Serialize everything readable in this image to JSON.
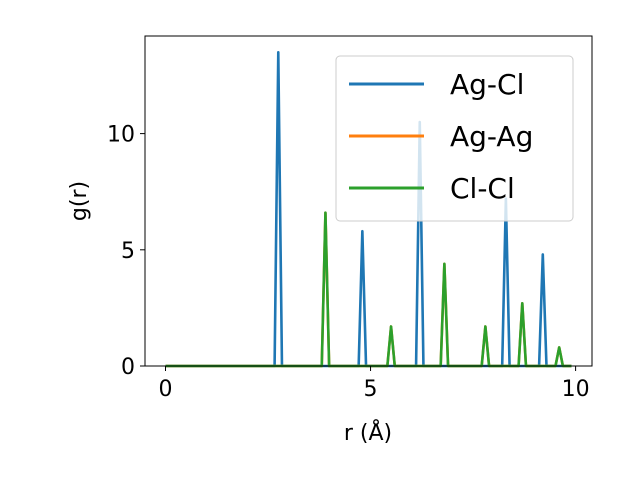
{
  "chart_data": {
    "type": "line",
    "title": "",
    "xlabel": "r (Å)",
    "ylabel": "g(r)",
    "xlim": [
      -0.5,
      10.4
    ],
    "ylim": [
      0,
      14.2
    ],
    "xticks": [
      0,
      5,
      10
    ],
    "xtick_labels": [
      "0",
      "5",
      "10"
    ],
    "yticks": [
      0,
      5,
      10
    ],
    "ytick_labels": [
      "0",
      "5",
      "10"
    ],
    "grid": false,
    "legend_position": "top-right",
    "series": [
      {
        "name": "Ag-Cl",
        "color": "#1f77b4",
        "peaks": [
          [
            2.75,
            13.5
          ],
          [
            4.8,
            5.8
          ],
          [
            6.2,
            10.5
          ],
          [
            8.3,
            7.2
          ],
          [
            9.2,
            4.8
          ]
        ]
      },
      {
        "name": "Ag-Ag",
        "color": "#ff7f0e",
        "peaks": [
          [
            3.9,
            6.6
          ],
          [
            5.5,
            1.7
          ],
          [
            6.8,
            4.4
          ],
          [
            7.8,
            1.7
          ],
          [
            8.7,
            2.7
          ],
          [
            9.6,
            0.8
          ]
        ]
      },
      {
        "name": "Cl-Cl",
        "color": "#2ca02c",
        "peaks": [
          [
            3.9,
            6.6
          ],
          [
            5.5,
            1.7
          ],
          [
            6.8,
            4.4
          ],
          [
            7.8,
            1.7
          ],
          [
            8.7,
            2.7
          ],
          [
            9.6,
            0.8
          ]
        ]
      }
    ],
    "x_range": [
      0,
      9.9
    ]
  }
}
